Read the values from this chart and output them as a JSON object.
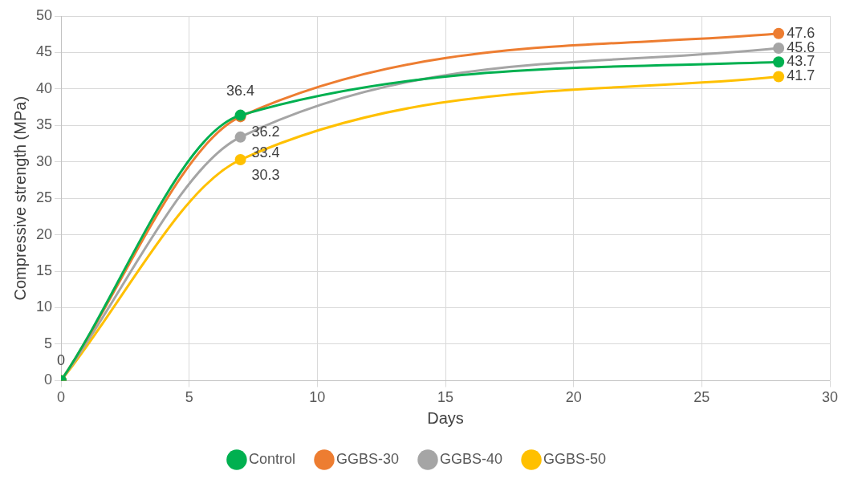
{
  "chart_data": {
    "type": "line",
    "xlabel": "Days",
    "ylabel": "Compressive strength (MPa)",
    "x": [
      0,
      7,
      28
    ],
    "series": [
      {
        "name": "Control",
        "color": "#00b050",
        "values": [
          0,
          36.4,
          43.7
        ],
        "value_labels": [
          "0",
          "36.4",
          "43.7"
        ]
      },
      {
        "name": "GGBS-30",
        "color": "#ed7d31",
        "values": [
          0,
          36.2,
          47.6
        ],
        "value_labels": [
          null,
          "36.2",
          "47.6"
        ]
      },
      {
        "name": "GGBS-40",
        "color": "#a5a5a5",
        "values": [
          0,
          33.4,
          45.6
        ],
        "value_labels": [
          null,
          "33.4",
          "45.6"
        ]
      },
      {
        "name": "GGBS-50",
        "color": "#ffc000",
        "values": [
          0,
          30.3,
          41.7
        ],
        "value_labels": [
          null,
          "30.3",
          "41.7"
        ]
      }
    ],
    "xlim": [
      0,
      30
    ],
    "xticks": [
      0,
      5,
      10,
      15,
      20,
      25,
      30
    ],
    "ylim": [
      0,
      50
    ],
    "yticks": [
      0,
      5,
      10,
      15,
      20,
      25,
      30,
      35,
      40,
      45,
      50
    ],
    "grid": true,
    "legend": "bottom",
    "marker": "circle",
    "line_style": "solid"
  }
}
